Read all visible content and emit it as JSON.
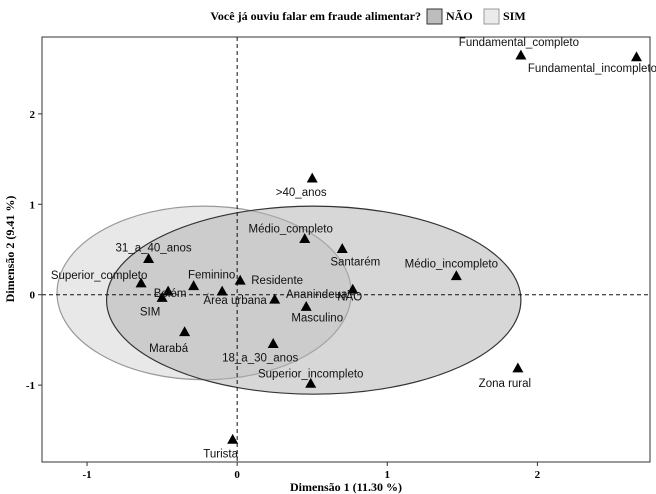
{
  "chart_data": {
    "type": "scatter",
    "legend": {
      "title": "Você já ouviu falar em fraude alimentar?",
      "entries": [
        {
          "label": "NÃO",
          "color": "#bdbdbd"
        },
        {
          "label": "SIM",
          "color": "#ebebeb"
        }
      ],
      "placement": "top"
    },
    "xlabel": "Dimensão 1 (11.30 %)",
    "ylabel": "Dimensão 2 (9.41 %)",
    "xlim": [
      -1.3,
      2.75
    ],
    "ylim": [
      -1.85,
      2.85
    ],
    "xticks": [
      -1,
      0,
      1,
      2
    ],
    "yticks": [
      -1,
      0,
      1,
      2
    ],
    "grid": false,
    "reference_lines": {
      "x": 0,
      "y": 0,
      "style": "dashed"
    },
    "points": [
      {
        "label": "Fundamental_completo",
        "x": 1.89,
        "y": 2.65
      },
      {
        "label": "Fundamental_incompleto",
        "x": 2.66,
        "y": 2.63
      },
      {
        "label": ">40_anos",
        "x": 0.5,
        "y": 1.29
      },
      {
        "label": "Médio_completo",
        "x": 0.45,
        "y": 0.62
      },
      {
        "label": "Santarém",
        "x": 0.7,
        "y": 0.51
      },
      {
        "label": "Médio_incompleto",
        "x": 1.46,
        "y": 0.21
      },
      {
        "label": "31_a_40_anos",
        "x": -0.59,
        "y": 0.4
      },
      {
        "label": "Superior_completo",
        "x": -0.64,
        "y": 0.13
      },
      {
        "label": "Feminino",
        "x": -0.29,
        "y": 0.1
      },
      {
        "label": "Belém",
        "x": -0.46,
        "y": 0.04
      },
      {
        "label": "Residente",
        "x": 0.02,
        "y": 0.16
      },
      {
        "label": "Área urbana",
        "x": -0.1,
        "y": 0.04
      },
      {
        "label": "SIM",
        "x": -0.5,
        "y": -0.03
      },
      {
        "label": "Ananindeua",
        "x": 0.25,
        "y": -0.05
      },
      {
        "label": "NÃO",
        "x": 0.77,
        "y": 0.06
      },
      {
        "label": "Masculino",
        "x": 0.46,
        "y": -0.13
      },
      {
        "label": "Marabá",
        "x": -0.35,
        "y": -0.41
      },
      {
        "label": "18_a_30_anos",
        "x": 0.24,
        "y": -0.54
      },
      {
        "label": "Superior_incompleto",
        "x": 0.49,
        "y": -0.98
      },
      {
        "label": "Zona rural",
        "x": 1.87,
        "y": -0.81
      },
      {
        "label": "Turista",
        "x": -0.03,
        "y": -1.6
      }
    ],
    "ellipses": [
      {
        "group": "SIM",
        "cx": -0.22,
        "cy": 0.02,
        "rx": 0.98,
        "ry": 0.96
      },
      {
        "group": "NÃO",
        "cx": 0.51,
        "cy": -0.06,
        "rx": 1.38,
        "ry": 1.04
      }
    ]
  }
}
